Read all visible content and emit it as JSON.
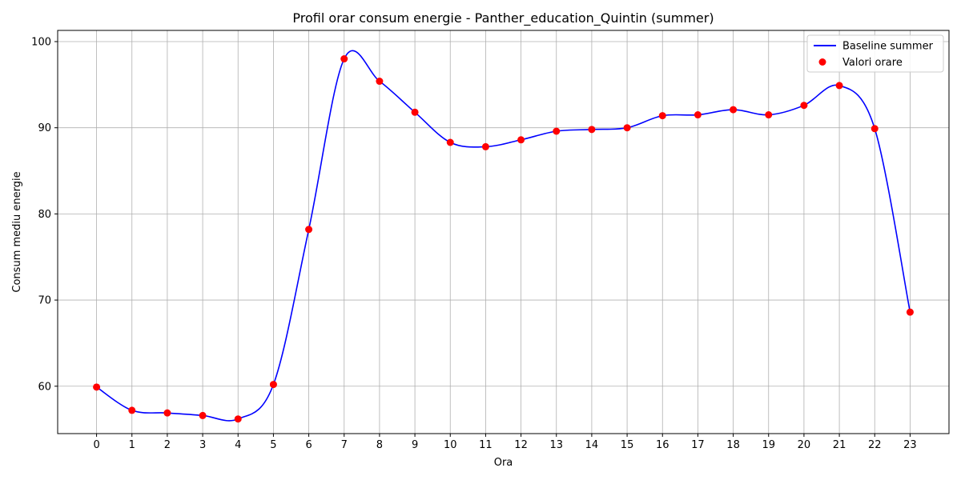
{
  "chart_data": {
    "type": "line",
    "title": "Profil orar consum energie - Panther_education_Quintin (summer)",
    "xlabel": "Ora",
    "ylabel": "Consum mediu energie",
    "x": [
      0,
      1,
      2,
      3,
      4,
      5,
      6,
      7,
      8,
      9,
      10,
      11,
      12,
      13,
      14,
      15,
      16,
      17,
      18,
      19,
      20,
      21,
      22,
      23
    ],
    "xticks": [
      "0",
      "1",
      "2",
      "3",
      "4",
      "5",
      "6",
      "7",
      "8",
      "9",
      "10",
      "11",
      "12",
      "13",
      "14",
      "15",
      "16",
      "17",
      "18",
      "19",
      "20",
      "21",
      "22",
      "23"
    ],
    "yticks": [
      "60",
      "70",
      "80",
      "90",
      "100"
    ],
    "xlim": [
      -1.1,
      24.1
    ],
    "ylim": [
      54.5,
      101.3
    ],
    "grid": true,
    "legend_position": "top-right",
    "series": [
      {
        "name": "Baseline summer",
        "kind": "line",
        "color": "#0000ff",
        "values": [
          59.9,
          57.2,
          56.9,
          56.6,
          56.2,
          60.2,
          78.2,
          98.0,
          95.4,
          91.8,
          88.3,
          87.8,
          88.6,
          89.6,
          89.8,
          90.0,
          91.4,
          91.5,
          92.1,
          91.5,
          92.6,
          94.9,
          89.9,
          68.6
        ]
      },
      {
        "name": "Valori orare",
        "kind": "scatter",
        "color": "#ff0000",
        "values": [
          59.9,
          57.2,
          56.9,
          56.6,
          56.2,
          60.2,
          78.2,
          98.0,
          95.4,
          91.8,
          88.3,
          87.8,
          88.6,
          89.6,
          89.8,
          90.0,
          91.4,
          91.5,
          92.1,
          91.5,
          92.6,
          94.9,
          89.9,
          68.6
        ]
      }
    ]
  }
}
